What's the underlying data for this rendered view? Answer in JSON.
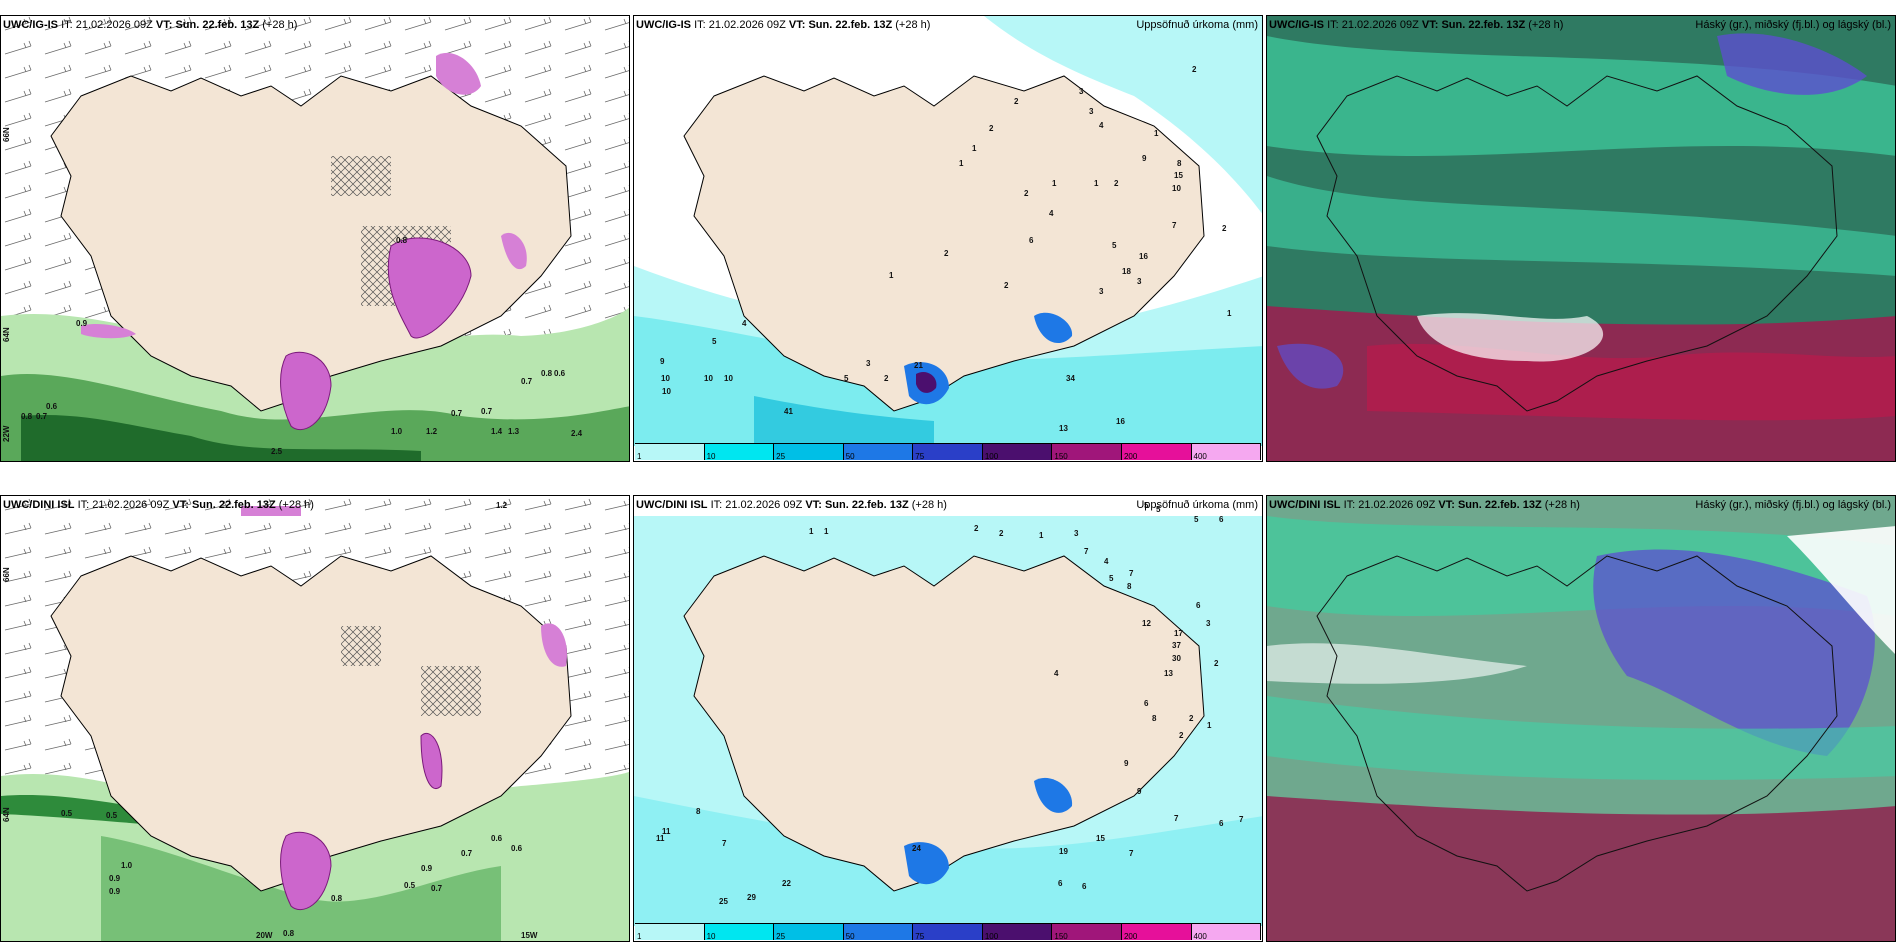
{
  "panels": [
    {
      "id": "p1",
      "model": "UWC/IG-IS",
      "it_label": "IT:",
      "it_value": "21.02.2026 09Z",
      "vt_label": "VT:",
      "vt_value": "Sun. 22.feb. 13Z",
      "lead": "(+28 h)",
      "right_title": "",
      "axis_labels": [
        "66N",
        "64N",
        "22W"
      ]
    },
    {
      "id": "p2",
      "model": "UWC/IG-IS",
      "it_label": "IT:",
      "it_value": "21.02.2026 09Z",
      "vt_label": "VT:",
      "vt_value": "Sun. 22.feb. 13Z",
      "lead": "(+28 h)",
      "right_title": "Uppsöfnuð úrkoma (mm)",
      "values": [
        "2",
        "3",
        "3",
        "4",
        "2",
        "2",
        "1",
        "1",
        "2",
        "1",
        "1",
        "1",
        "9",
        "8",
        "15",
        "10",
        "7",
        "2",
        "4",
        "6",
        "5",
        "16",
        "18",
        "3",
        "3",
        "2",
        "1",
        "2",
        "2",
        "4",
        "5",
        "9",
        "10",
        "10",
        "10",
        "3",
        "2",
        "5",
        "21",
        "34",
        "41",
        "13",
        "16",
        "10",
        "1"
      ]
    },
    {
      "id": "p3",
      "model": "UWC/IG-IS",
      "it_label": "IT:",
      "it_value": "21.02.2026 09Z",
      "vt_label": "VT:",
      "vt_value": "Sun. 22.feb. 13Z",
      "lead": "(+28 h)",
      "right_title": "Háský (gr.), miðský (fj.bl.) og lágský (bl.)"
    },
    {
      "id": "p4",
      "model": "UWC/DINI ISL",
      "it_label": "IT:",
      "it_value": "21.02.2026 09Z",
      "vt_label": "VT:",
      "vt_value": "Sun. 22.feb. 13Z",
      "lead": "(+28 h)",
      "right_title": "",
      "axis_labels": [
        "66N",
        "64N",
        "20W",
        "15W"
      ]
    },
    {
      "id": "p5",
      "model": "UWC/DINI ISL",
      "it_label": "IT:",
      "it_value": "21.02.2026 09Z",
      "vt_label": "VT:",
      "vt_value": "Sun. 22.feb. 13Z",
      "lead": "(+28 h)",
      "right_title": "Uppsöfnuð úrkoma (mm)",
      "values": [
        "5",
        "5",
        "6",
        "5",
        "2",
        "2",
        "1",
        "1",
        "1",
        "3",
        "7",
        "4",
        "5",
        "7",
        "8",
        "6",
        "12",
        "17",
        "37",
        "30",
        "13",
        "3",
        "2",
        "4",
        "6",
        "8",
        "9",
        "2",
        "1",
        "2",
        "9",
        "15",
        "19",
        "7",
        "7",
        "6",
        "7",
        "6",
        "6",
        "8",
        "11",
        "7",
        "22",
        "25",
        "29",
        "24",
        "11"
      ]
    },
    {
      "id": "p6",
      "model": "UWC/DINI ISL",
      "it_label": "IT:",
      "it_value": "21.02.2026 09Z",
      "vt_label": "VT:",
      "vt_value": "Sun. 22.feb. 13Z",
      "lead": "(+28 h)",
      "right_title": "Háský (gr.), miðský (fj.bl.) og lágský (bl.)"
    }
  ],
  "precip_labels": {
    "p1": [
      "0.9",
      "0.8",
      "0.6",
      "0.7",
      "0.8",
      "0.7",
      "0.7",
      "1.0",
      "1.2",
      "0.7",
      "1.4",
      "1.3",
      "2.4",
      "2.5",
      "0.8",
      "0.6"
    ],
    "p4": [
      "0.5",
      "0.5",
      "1.0",
      "0.9",
      "0.9",
      "0.8",
      "0.5",
      "0.7",
      "0.9",
      "0.7",
      "0.6",
      "0.6",
      "0.8",
      "1.2"
    ]
  },
  "legend": {
    "labels": [
      "1",
      "10",
      "25",
      "50",
      "75",
      "100",
      "150",
      "200",
      "400"
    ],
    "colors": [
      "#b7f7f7",
      "#00e6f0",
      "#00bfe6",
      "#1e78e6",
      "#2a3fc8",
      "#4b0f6e",
      "#a0167a",
      "#e6109a",
      "#f5a8f0"
    ]
  }
}
